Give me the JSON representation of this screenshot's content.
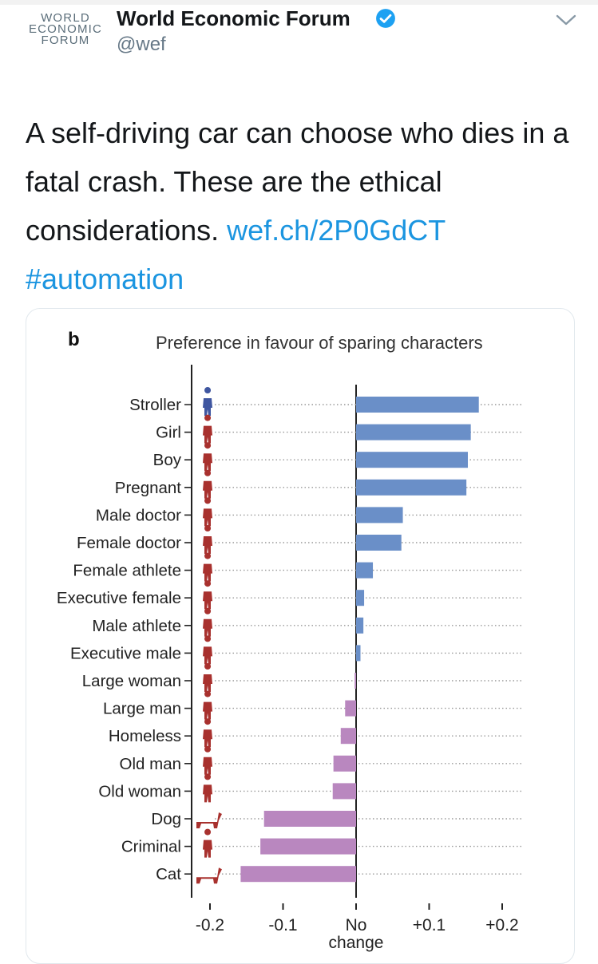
{
  "tweet": {
    "logo_lines": [
      "WORLD",
      "ECONOMIC",
      "FORUM"
    ],
    "author_name": "World Economic Forum",
    "handle": "@wef",
    "text": "A self-driving car can choose who dies in a fatal crash. These are the ethical considerations.",
    "link": "wef.ch/2P0GdCT",
    "hashtag": "#automation",
    "icons": [
      "verified-badge-icon",
      "chevron-down-icon"
    ],
    "colors": {
      "link": "#1b95e0",
      "verified": "#1da1f2"
    }
  },
  "chart_data": {
    "type": "bar",
    "orientation": "horizontal",
    "panel_label": "b",
    "title": "Preference in favour of sparing characters",
    "categories": [
      "Stroller",
      "Girl",
      "Boy",
      "Pregnant",
      "Male doctor",
      "Female doctor",
      "Female athlete",
      "Executive female",
      "Male athlete",
      "Executive male",
      "Large woman",
      "Large man",
      "Homeless",
      "Old man",
      "Old woman",
      "Dog",
      "Criminal",
      "Cat"
    ],
    "values": [
      0.168,
      0.157,
      0.153,
      0.151,
      0.064,
      0.062,
      0.023,
      0.011,
      0.01,
      0.006,
      -0.002,
      -0.015,
      -0.021,
      -0.031,
      -0.032,
      -0.126,
      -0.131,
      -0.158
    ],
    "x_ticks": [
      "-0.2",
      "-0.1",
      "No change",
      "+0.1",
      "+0.2"
    ],
    "x_tick_values": [
      -0.2,
      -0.1,
      0,
      0.1,
      0.2
    ],
    "xlim": [
      -0.21,
      0.21
    ],
    "colors": {
      "positive": "#6a8fc8",
      "negative": "#b987bf",
      "icons": "#a8312e",
      "stroller_icon": "#3f56a0"
    }
  }
}
